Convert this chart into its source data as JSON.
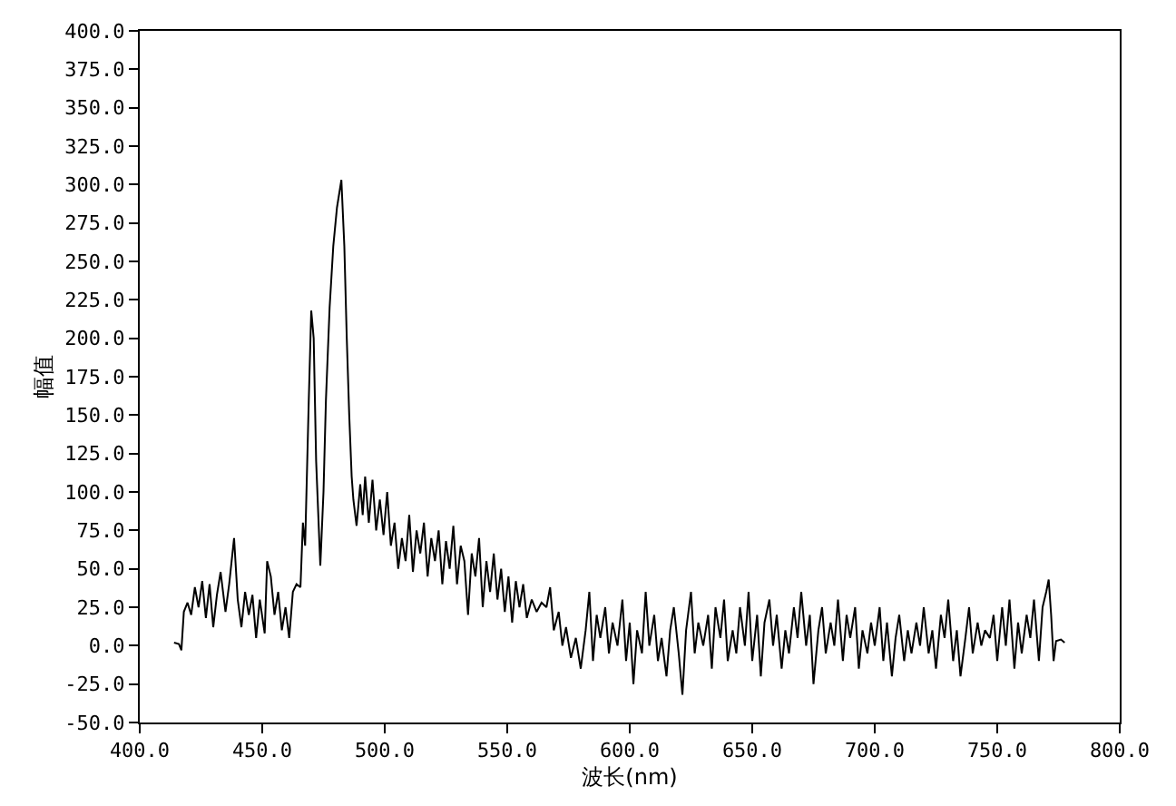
{
  "chart_data": {
    "type": "line",
    "xlabel": "波长(nm)",
    "ylabel": "幅值",
    "grid": false,
    "marker": "none",
    "line_style": "solid",
    "xlim": [
      400,
      800
    ],
    "ylim": [
      -50,
      400
    ],
    "xticks": [
      {
        "value": 400,
        "label": "400.0"
      },
      {
        "value": 450,
        "label": "450.0"
      },
      {
        "value": 500,
        "label": "500.0"
      },
      {
        "value": 550,
        "label": "550.0"
      },
      {
        "value": 600,
        "label": "600.0"
      },
      {
        "value": 650,
        "label": "650.0"
      },
      {
        "value": 700,
        "label": "700.0"
      },
      {
        "value": 750,
        "label": "750.0"
      },
      {
        "value": 800,
        "label": "800.0"
      }
    ],
    "yticks": [
      {
        "value": -50,
        "label": "-50.0"
      },
      {
        "value": -25,
        "label": "-25.0"
      },
      {
        "value": 0,
        "label": "0.0"
      },
      {
        "value": 25,
        "label": "25.0"
      },
      {
        "value": 50,
        "label": "50.0"
      },
      {
        "value": 75,
        "label": "75.0"
      },
      {
        "value": 100,
        "label": "100.0"
      },
      {
        "value": 125,
        "label": "125.0"
      },
      {
        "value": 150,
        "label": "150.0"
      },
      {
        "value": 175,
        "label": "175.0"
      },
      {
        "value": 200,
        "label": "200.0"
      },
      {
        "value": 225,
        "label": "225.0"
      },
      {
        "value": 250,
        "label": "250.0"
      },
      {
        "value": 275,
        "label": "275.0"
      },
      {
        "value": 300,
        "label": "300.0"
      },
      {
        "value": 325,
        "label": "325.0"
      },
      {
        "value": 350,
        "label": "350.0"
      },
      {
        "value": 375,
        "label": "375.0"
      },
      {
        "value": 400,
        "label": "400.0"
      }
    ],
    "series": [
      {
        "color": "#000000",
        "x": [
          414,
          416,
          417,
          418,
          419.5,
          421,
          422.5,
          424,
          425.5,
          427,
          428.5,
          430,
          431.5,
          433,
          435,
          436.5,
          438.5,
          440,
          441.5,
          443,
          444.5,
          446,
          447.5,
          449,
          451,
          452,
          453.5,
          455,
          456.5,
          458,
          459.5,
          461,
          462.5,
          464,
          465.6,
          466.6,
          467.5,
          469,
          470,
          471,
          472,
          473.7,
          475,
          476,
          477.5,
          479,
          480.5,
          482.3,
          483.5,
          484.5,
          485.5,
          486.5,
          487.2,
          488.5,
          490,
          491,
          492,
          493.5,
          495,
          496.5,
          498,
          499.5,
          501,
          502.5,
          504,
          505.5,
          507,
          508.5,
          510,
          511.5,
          513,
          514.5,
          516,
          517.5,
          519,
          520.5,
          522,
          523.5,
          525,
          526.5,
          528,
          529.5,
          531,
          532.5,
          534,
          535.5,
          537,
          538.5,
          540,
          541.5,
          543,
          544.5,
          546,
          547.5,
          549,
          550.5,
          552,
          553.5,
          555,
          556.5,
          558,
          560,
          562,
          564,
          566,
          567.5,
          569,
          571,
          572.5,
          574,
          576,
          578,
          580,
          582,
          583.5,
          585,
          586.5,
          588,
          590,
          591.5,
          593,
          595,
          597,
          598.5,
          600,
          601.5,
          603,
          605,
          606.5,
          608,
          610,
          611.5,
          613,
          615,
          616.5,
          618,
          620,
          621.5,
          623,
          625,
          626.5,
          628,
          630,
          632,
          633.5,
          635,
          637,
          638.5,
          640,
          642,
          643.5,
          645,
          647,
          648.5,
          650,
          652,
          653.5,
          655,
          657,
          658.5,
          660,
          662,
          663.5,
          665,
          667,
          668.5,
          670,
          672,
          673.5,
          675,
          677,
          678.5,
          680,
          682,
          683.5,
          685,
          687,
          688.5,
          690,
          692,
          693.5,
          695,
          697,
          698.5,
          700,
          702,
          703.5,
          705,
          707,
          708.5,
          710,
          712,
          713.5,
          715,
          717,
          718.5,
          720,
          722,
          723.5,
          725,
          727,
          728.5,
          730,
          732,
          733.5,
          735,
          737,
          738.5,
          740,
          742,
          743.5,
          745,
          747,
          748.5,
          750,
          752,
          753.5,
          755,
          757,
          758.5,
          760,
          762,
          763.5,
          765,
          767,
          768.5,
          770,
          771,
          772,
          773,
          774,
          776,
          777.5
        ],
        "values": [
          2,
          1,
          -3,
          22,
          28,
          20,
          38,
          25,
          42,
          18,
          40,
          12,
          33,
          48,
          22,
          40,
          70,
          30,
          12,
          35,
          20,
          33,
          5,
          30,
          8,
          55,
          45,
          20,
          35,
          10,
          25,
          5,
          35,
          40,
          38,
          80,
          65,
          160,
          218,
          200,
          120,
          52,
          100,
          160,
          220,
          260,
          285,
          303,
          260,
          200,
          150,
          110,
          95,
          78,
          105,
          85,
          110,
          80,
          108,
          75,
          95,
          72,
          100,
          65,
          80,
          50,
          70,
          55,
          85,
          48,
          75,
          60,
          80,
          45,
          70,
          55,
          75,
          40,
          68,
          50,
          78,
          40,
          65,
          55,
          20,
          60,
          45,
          70,
          25,
          55,
          35,
          60,
          30,
          50,
          22,
          45,
          15,
          42,
          25,
          40,
          18,
          30,
          22,
          28,
          25,
          38,
          10,
          22,
          0,
          12,
          -8,
          5,
          -15,
          10,
          35,
          -10,
          20,
          5,
          25,
          -5,
          15,
          0,
          30,
          -10,
          15,
          -25,
          10,
          -5,
          35,
          0,
          20,
          -10,
          5,
          -20,
          10,
          25,
          -5,
          -32,
          10,
          35,
          -5,
          15,
          0,
          20,
          -15,
          25,
          5,
          30,
          -10,
          10,
          -5,
          25,
          0,
          35,
          -10,
          20,
          -20,
          15,
          30,
          0,
          20,
          -15,
          10,
          -5,
          25,
          5,
          35,
          0,
          20,
          -25,
          10,
          25,
          -5,
          15,
          0,
          30,
          -10,
          20,
          5,
          25,
          -15,
          10,
          -5,
          15,
          0,
          25,
          -10,
          15,
          -20,
          5,
          20,
          -10,
          10,
          -5,
          15,
          0,
          25,
          -5,
          10,
          -15,
          20,
          5,
          30,
          -10,
          10,
          -20,
          5,
          25,
          -5,
          15,
          0,
          10,
          5,
          20,
          -10,
          25,
          0,
          30,
          -15,
          15,
          -5,
          20,
          5,
          30,
          -10,
          25,
          35,
          43,
          20,
          -10,
          3,
          4,
          2
        ]
      }
    ]
  }
}
